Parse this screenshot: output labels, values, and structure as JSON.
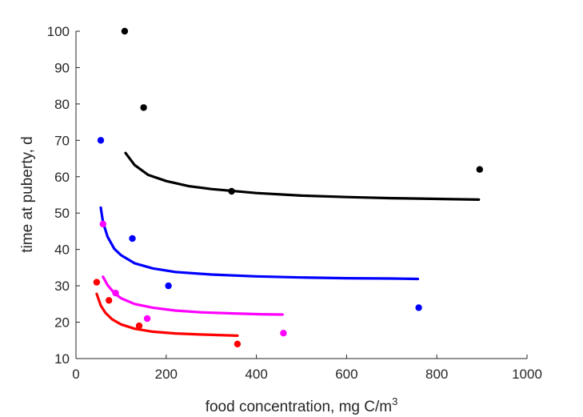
{
  "chart_data": {
    "type": "scatter",
    "title": "",
    "xlabel": "food concentration, mg C/m",
    "xlabel_superscript": "3",
    "ylabel": "time at puberty, d",
    "xlim": [
      0,
      1000
    ],
    "ylim": [
      10,
      100
    ],
    "xticks": [
      0,
      200,
      400,
      600,
      800,
      1000
    ],
    "yticks": [
      10,
      20,
      30,
      40,
      50,
      60,
      70,
      80,
      90,
      100
    ],
    "xtick_labels": [
      "0",
      "200",
      "400",
      "600",
      "800",
      "1000"
    ],
    "ytick_labels": [
      "10",
      "20",
      "30",
      "40",
      "50",
      "60",
      "70",
      "80",
      "90",
      "100"
    ],
    "grid": false,
    "legend": "none",
    "series": [
      {
        "color": "#000000",
        "points": [
          [
            108,
            100
          ],
          [
            150,
            79
          ],
          [
            345,
            56
          ],
          [
            895,
            62
          ]
        ],
        "curve": [
          [
            110,
            66.5
          ],
          [
            130,
            63.2
          ],
          [
            160,
            60.5
          ],
          [
            200,
            58.8
          ],
          [
            250,
            57.4
          ],
          [
            300,
            56.6
          ],
          [
            400,
            55.5
          ],
          [
            500,
            54.8
          ],
          [
            600,
            54.4
          ],
          [
            700,
            54.1
          ],
          [
            800,
            53.9
          ],
          [
            893,
            53.7
          ]
        ]
      },
      {
        "color": "#0000ff",
        "points": [
          [
            55,
            70
          ],
          [
            125,
            43
          ],
          [
            205,
            30
          ],
          [
            760,
            24
          ]
        ],
        "curve": [
          [
            55,
            51.5
          ],
          [
            60,
            47.5
          ],
          [
            70,
            43.5
          ],
          [
            85,
            40.2
          ],
          [
            100,
            38.4
          ],
          [
            130,
            36.2
          ],
          [
            170,
            34.8
          ],
          [
            220,
            33.8
          ],
          [
            300,
            33.1
          ],
          [
            400,
            32.6
          ],
          [
            500,
            32.3
          ],
          [
            600,
            32.1
          ],
          [
            700,
            32.0
          ],
          [
            758,
            31.9
          ]
        ]
      },
      {
        "color": "#ff00ff",
        "points": [
          [
            60,
            47
          ],
          [
            88,
            28
          ],
          [
            158,
            21
          ],
          [
            460,
            17
          ]
        ],
        "curve": [
          [
            60,
            32.5
          ],
          [
            70,
            30.2
          ],
          [
            85,
            28.0
          ],
          [
            100,
            26.6
          ],
          [
            130,
            25.0
          ],
          [
            170,
            24.0
          ],
          [
            220,
            23.2
          ],
          [
            280,
            22.7
          ],
          [
            350,
            22.4
          ],
          [
            410,
            22.2
          ],
          [
            458,
            22.1
          ]
        ]
      },
      {
        "color": "#ff0000",
        "points": [
          [
            46,
            31
          ],
          [
            73,
            26
          ],
          [
            140,
            19
          ],
          [
            358,
            14
          ]
        ],
        "curve": [
          [
            46,
            27.8
          ],
          [
            55,
            24.6
          ],
          [
            65,
            22.6
          ],
          [
            80,
            20.8
          ],
          [
            100,
            19.4
          ],
          [
            130,
            18.2
          ],
          [
            170,
            17.4
          ],
          [
            220,
            16.9
          ],
          [
            280,
            16.6
          ],
          [
            330,
            16.4
          ],
          [
            358,
            16.3
          ]
        ]
      }
    ]
  }
}
